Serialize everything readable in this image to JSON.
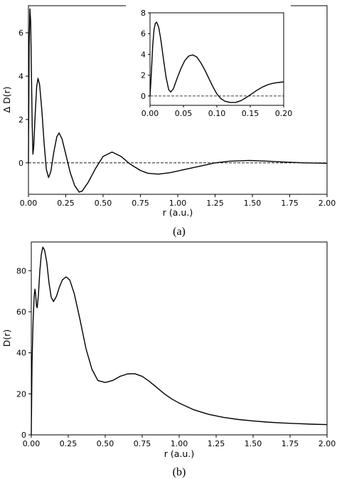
{
  "chart_data": [
    {
      "id": "a",
      "type": "line",
      "caption": "(a)",
      "xlabel": "r (a.u.)",
      "ylabel": "Δ D(r)",
      "xlim": [
        0,
        2.0
      ],
      "ylim": [
        -1.45,
        7.25
      ],
      "x_ticks": [
        "0.00",
        "0.25",
        "0.50",
        "0.75",
        "1.00",
        "1.25",
        "1.50",
        "1.75",
        "2.00"
      ],
      "y_ticks": [
        "0",
        "2",
        "4",
        "6"
      ],
      "reference_line": {
        "y": 0,
        "style": "dashed"
      },
      "series": [
        {
          "points": [
            [
              0.0,
              0.0
            ],
            [
              0.005,
              5.5
            ],
            [
              0.01,
              7.1
            ],
            [
              0.015,
              6.5
            ],
            [
              0.02,
              4.2
            ],
            [
              0.025,
              1.8
            ],
            [
              0.03,
              0.4
            ],
            [
              0.035,
              0.7
            ],
            [
              0.045,
              2.2
            ],
            [
              0.055,
              3.5
            ],
            [
              0.064,
              3.9
            ],
            [
              0.075,
              3.6
            ],
            [
              0.09,
              2.4
            ],
            [
              0.105,
              0.9
            ],
            [
              0.12,
              -0.3
            ],
            [
              0.135,
              -0.68
            ],
            [
              0.15,
              -0.4
            ],
            [
              0.17,
              0.5
            ],
            [
              0.19,
              1.2
            ],
            [
              0.205,
              1.38
            ],
            [
              0.225,
              1.1
            ],
            [
              0.25,
              0.4
            ],
            [
              0.28,
              -0.45
            ],
            [
              0.31,
              -1.05
            ],
            [
              0.34,
              -1.35
            ],
            [
              0.36,
              -1.3
            ],
            [
              0.4,
              -0.9
            ],
            [
              0.45,
              -0.25
            ],
            [
              0.5,
              0.3
            ],
            [
              0.56,
              0.5
            ],
            [
              0.62,
              0.3
            ],
            [
              0.68,
              -0.05
            ],
            [
              0.75,
              -0.35
            ],
            [
              0.8,
              -0.48
            ],
            [
              0.87,
              -0.52
            ],
            [
              0.95,
              -0.45
            ],
            [
              1.05,
              -0.3
            ],
            [
              1.15,
              -0.15
            ],
            [
              1.25,
              0.0
            ],
            [
              1.35,
              0.08
            ],
            [
              1.48,
              0.11
            ],
            [
              1.6,
              0.08
            ],
            [
              1.7,
              0.04
            ],
            [
              1.85,
              0.0
            ],
            [
              2.0,
              -0.02
            ]
          ]
        }
      ]
    },
    {
      "id": "a-inset",
      "type": "line",
      "xlim": [
        0,
        0.2
      ],
      "ylim": [
        -0.9,
        8.0
      ],
      "x_ticks": [
        "0.00",
        "0.05",
        "0.10",
        "0.15",
        "0.20"
      ],
      "y_ticks": [
        "0",
        "2",
        "4",
        "6",
        "8"
      ],
      "reference_line": {
        "y": 0,
        "style": "dashed"
      },
      "series": [
        {
          "points": [
            [
              0.0,
              0.0
            ],
            [
              0.002,
              2.2
            ],
            [
              0.004,
              4.8
            ],
            [
              0.006,
              6.4
            ],
            [
              0.008,
              7.0
            ],
            [
              0.01,
              7.1
            ],
            [
              0.013,
              6.6
            ],
            [
              0.016,
              5.5
            ],
            [
              0.02,
              3.6
            ],
            [
              0.024,
              1.8
            ],
            [
              0.028,
              0.6
            ],
            [
              0.031,
              0.38
            ],
            [
              0.035,
              0.7
            ],
            [
              0.04,
              1.6
            ],
            [
              0.046,
              2.6
            ],
            [
              0.052,
              3.4
            ],
            [
              0.058,
              3.85
            ],
            [
              0.064,
              3.95
            ],
            [
              0.07,
              3.75
            ],
            [
              0.076,
              3.2
            ],
            [
              0.082,
              2.5
            ],
            [
              0.088,
              1.7
            ],
            [
              0.094,
              0.9
            ],
            [
              0.1,
              0.2
            ],
            [
              0.106,
              -0.25
            ],
            [
              0.112,
              -0.5
            ],
            [
              0.12,
              -0.62
            ],
            [
              0.128,
              -0.62
            ],
            [
              0.136,
              -0.45
            ],
            [
              0.144,
              -0.15
            ],
            [
              0.152,
              0.2
            ],
            [
              0.16,
              0.55
            ],
            [
              0.168,
              0.85
            ],
            [
              0.176,
              1.08
            ],
            [
              0.184,
              1.22
            ],
            [
              0.192,
              1.3
            ],
            [
              0.2,
              1.35
            ]
          ]
        }
      ]
    },
    {
      "id": "b",
      "type": "line",
      "caption": "(b)",
      "xlabel": "r (a.u.)",
      "ylabel": "D(r)",
      "xlim": [
        0,
        2.0
      ],
      "ylim": [
        0,
        94
      ],
      "x_ticks": [
        "0.00",
        "0.25",
        "0.50",
        "0.75",
        "1.00",
        "1.25",
        "1.50",
        "1.75",
        "2.00"
      ],
      "y_ticks": [
        "0",
        "20",
        "40",
        "60",
        "80"
      ],
      "series": [
        {
          "points": [
            [
              0.0,
              0.0
            ],
            [
              0.005,
              35.0
            ],
            [
              0.012,
              55.0
            ],
            [
              0.02,
              68.0
            ],
            [
              0.025,
              71.0
            ],
            [
              0.03,
              68.0
            ],
            [
              0.035,
              63.0
            ],
            [
              0.04,
              62.0
            ],
            [
              0.048,
              68.0
            ],
            [
              0.058,
              80.0
            ],
            [
              0.068,
              88.0
            ],
            [
              0.078,
              91.5
            ],
            [
              0.09,
              90.0
            ],
            [
              0.105,
              84.0
            ],
            [
              0.12,
              74.0
            ],
            [
              0.135,
              67.0
            ],
            [
              0.15,
              65.0
            ],
            [
              0.17,
              67.5
            ],
            [
              0.19,
              72.0
            ],
            [
              0.21,
              75.5
            ],
            [
              0.235,
              77.0
            ],
            [
              0.26,
              75.5
            ],
            [
              0.29,
              69.0
            ],
            [
              0.33,
              56.0
            ],
            [
              0.37,
              42.0
            ],
            [
              0.41,
              32.0
            ],
            [
              0.45,
              26.5
            ],
            [
              0.5,
              25.5
            ],
            [
              0.55,
              26.5
            ],
            [
              0.6,
              28.5
            ],
            [
              0.65,
              29.7
            ],
            [
              0.7,
              29.8
            ],
            [
              0.75,
              28.5
            ],
            [
              0.8,
              26.0
            ],
            [
              0.85,
              23.0
            ],
            [
              0.9,
              20.0
            ],
            [
              0.95,
              17.5
            ],
            [
              1.0,
              15.5
            ],
            [
              1.1,
              12.2
            ],
            [
              1.2,
              10.0
            ],
            [
              1.3,
              8.5
            ],
            [
              1.4,
              7.5
            ],
            [
              1.5,
              6.8
            ],
            [
              1.6,
              6.2
            ],
            [
              1.7,
              5.8
            ],
            [
              1.8,
              5.5
            ],
            [
              1.9,
              5.2
            ],
            [
              2.0,
              5.0
            ]
          ]
        }
      ]
    }
  ]
}
